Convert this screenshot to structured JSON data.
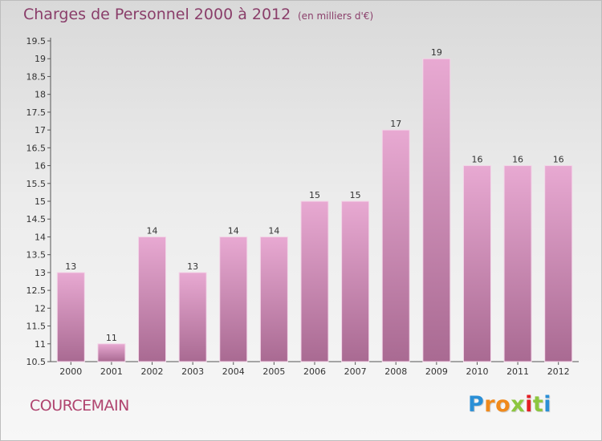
{
  "chart_data": {
    "type": "bar",
    "title": "Charges de Personnel 2000 à 2012",
    "subtitle": "(en milliers d'€)",
    "categories": [
      "2000",
      "2001",
      "2002",
      "2003",
      "2004",
      "2005",
      "2006",
      "2007",
      "2008",
      "2009",
      "2010",
      "2011",
      "2012"
    ],
    "values": [
      13,
      11,
      14,
      13,
      14,
      14,
      15,
      15,
      17,
      19,
      16,
      16,
      16
    ],
    "data_labels": [
      "13",
      "11",
      "14",
      "13",
      "14",
      "14",
      "15",
      "15",
      "17",
      "19",
      "16",
      "16",
      "16"
    ],
    "ylim": [
      10.5,
      19.5
    ],
    "yticks": [
      "10.5",
      "11",
      "11.5",
      "12",
      "12.5",
      "13",
      "13.5",
      "14",
      "14.5",
      "15",
      "15.5",
      "16",
      "16.5",
      "17",
      "17.5",
      "18",
      "18.5",
      "19",
      "19.5"
    ],
    "grid": false,
    "bar_color_top": "#e8a9d2",
    "bar_color_bottom": "#a96a92"
  },
  "footer": {
    "commune": "COURCEMAIN"
  },
  "logo": {
    "letters": [
      "P",
      "r",
      "o",
      "x",
      "i",
      "t",
      "i"
    ],
    "colors": [
      "#2a8fd6",
      "#f08a1c",
      "#f08a1c",
      "#8cc63f",
      "#e31e24",
      "#8cc63f",
      "#2a8fd6"
    ]
  }
}
